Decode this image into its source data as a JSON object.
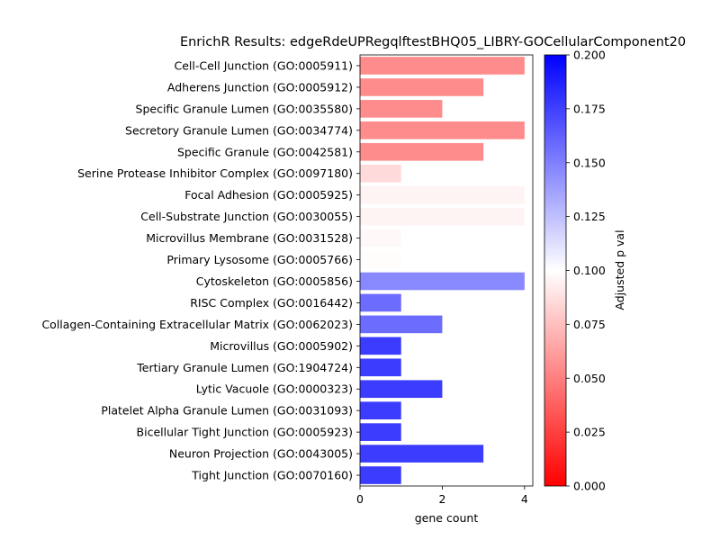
{
  "chart_data": {
    "type": "bar",
    "orientation": "horizontal",
    "title": "EnrichR Results: edgeRdeUPRegqlftestBHQ05_LIBRY-GOCellularComponent20",
    "xlabel": "gene count",
    "ylabel": "",
    "xlim": [
      0,
      4.2
    ],
    "xticks": [
      0,
      2,
      4
    ],
    "grid": false,
    "categories": [
      "Cell-Cell Junction (GO:0005911)",
      "Adherens Junction (GO:0005912)",
      "Specific Granule Lumen (GO:0035580)",
      "Secretory Granule Lumen (GO:0034774)",
      "Specific Granule (GO:0042581)",
      "Serine Protease Inhibitor Complex (GO:0097180)",
      "Focal Adhesion (GO:0005925)",
      "Cell-Substrate Junction (GO:0030055)",
      "Microvillus Membrane (GO:0031528)",
      "Primary Lysosome (GO:0005766)",
      "Cytoskeleton (GO:0005856)",
      "RISC Complex (GO:0016442)",
      "Collagen-Containing Extracellular Matrix (GO:0062023)",
      "Microvillus (GO:0005902)",
      "Tertiary Granule Lumen (GO:1904724)",
      "Lytic Vacuole (GO:0000323)",
      "Platelet Alpha Granule Lumen (GO:0031093)",
      "Bicellular Tight Junction (GO:0005923)",
      "Neuron Projection (GO:0043005)",
      "Tight Junction (GO:0070160)"
    ],
    "values": [
      4,
      3,
      2,
      4,
      3,
      1,
      4,
      4,
      1,
      1,
      4,
      1,
      2,
      1,
      1,
      2,
      1,
      1,
      3,
      1
    ],
    "adjusted_p_values": [
      0.047,
      0.047,
      0.047,
      0.047,
      0.047,
      0.083,
      0.095,
      0.095,
      0.097,
      0.099,
      0.155,
      0.168,
      0.168,
      0.19,
      0.19,
      0.19,
      0.19,
      0.19,
      0.19,
      0.19
    ],
    "colorbar": {
      "label": "Adjusted p val",
      "min": 0.0,
      "max": 0.2,
      "ticks": [
        "0.000",
        "0.025",
        "0.050",
        "0.075",
        "0.100",
        "0.125",
        "0.150",
        "0.175",
        "0.200"
      ],
      "colormap": [
        "#ff0000",
        "#ffffff",
        "#0000ff"
      ]
    }
  }
}
